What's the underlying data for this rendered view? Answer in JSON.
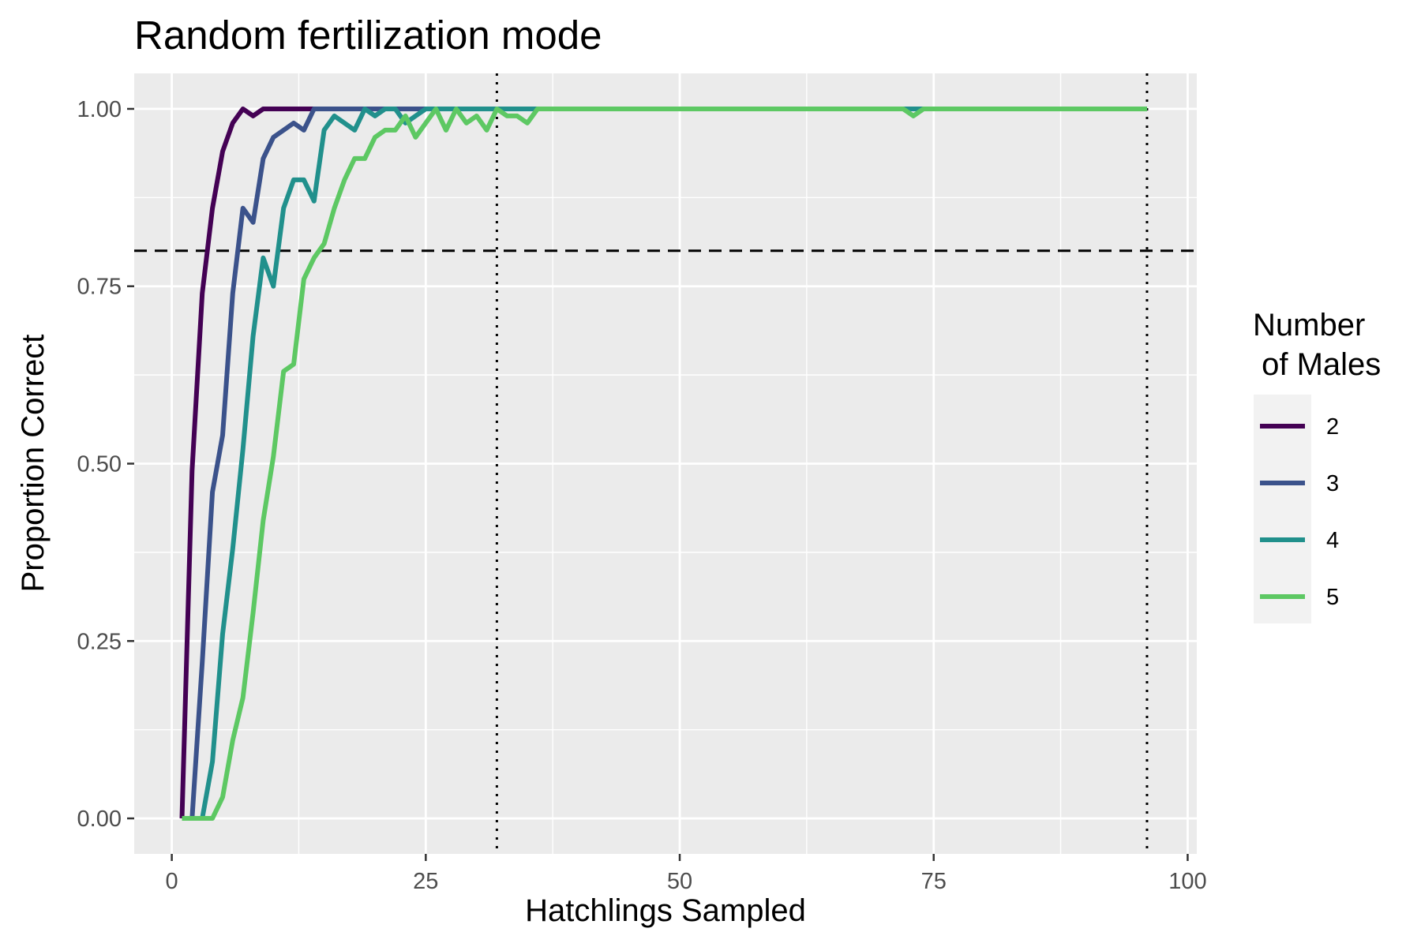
{
  "chart_data": {
    "type": "line",
    "title": "Random fertilization mode",
    "xlabel": "Hatchlings Sampled",
    "ylabel": "Proportion Correct",
    "xlim": [
      -3.7,
      100.9
    ],
    "ylim": [
      -0.05,
      1.05
    ],
    "x_ticks": [
      0,
      25,
      50,
      75,
      100
    ],
    "x_tick_labels": [
      "0",
      "25",
      "50",
      "75",
      "100"
    ],
    "y_ticks": [
      0,
      0.25,
      0.5,
      0.75,
      1
    ],
    "y_tick_labels": [
      "0.00",
      "0.25",
      "0.50",
      "0.75",
      "1.00"
    ],
    "grid": true,
    "legend": {
      "title_lines": [
        "Number",
        " of Males"
      ],
      "position": "right"
    },
    "reference_lines": [
      {
        "orientation": "horizontal",
        "value": 0.8,
        "style": "dashed"
      },
      {
        "orientation": "vertical",
        "value": 32,
        "style": "dotted"
      },
      {
        "orientation": "vertical",
        "value": 96,
        "style": "dotted"
      }
    ],
    "series": [
      {
        "name": "2",
        "color": "#440154",
        "points": [
          [
            1,
            0
          ],
          [
            2,
            0.49
          ],
          [
            3,
            0.74
          ],
          [
            4,
            0.86
          ],
          [
            5,
            0.94
          ],
          [
            6,
            0.98
          ],
          [
            7,
            1
          ],
          [
            8,
            0.99
          ],
          [
            9,
            1
          ],
          [
            10,
            1
          ],
          [
            11,
            1
          ],
          [
            12,
            1
          ],
          [
            13,
            1
          ],
          [
            14,
            1
          ],
          [
            15,
            1
          ],
          [
            16,
            1
          ],
          [
            17,
            1
          ],
          [
            18,
            1
          ],
          [
            19,
            1
          ],
          [
            20,
            1
          ],
          [
            25,
            1
          ],
          [
            30,
            1
          ],
          [
            35,
            1
          ],
          [
            40,
            1
          ],
          [
            50,
            1
          ],
          [
            60,
            1
          ],
          [
            70,
            1
          ],
          [
            80,
            1
          ],
          [
            90,
            1
          ],
          [
            96,
            1
          ]
        ]
      },
      {
        "name": "3",
        "color": "#3b528b",
        "points": [
          [
            2,
            0
          ],
          [
            3,
            0.22
          ],
          [
            4,
            0.46
          ],
          [
            5,
            0.54
          ],
          [
            6,
            0.74
          ],
          [
            7,
            0.86
          ],
          [
            8,
            0.84
          ],
          [
            9,
            0.93
          ],
          [
            10,
            0.96
          ],
          [
            11,
            0.97
          ],
          [
            12,
            0.98
          ],
          [
            13,
            0.97
          ],
          [
            14,
            1
          ],
          [
            15,
            1
          ],
          [
            16,
            1
          ],
          [
            17,
            1
          ],
          [
            18,
            1
          ],
          [
            19,
            1
          ],
          [
            20,
            1
          ],
          [
            25,
            1
          ],
          [
            30,
            1
          ],
          [
            35,
            1
          ],
          [
            40,
            1
          ],
          [
            50,
            1
          ],
          [
            60,
            1
          ],
          [
            70,
            1
          ],
          [
            80,
            1
          ],
          [
            90,
            1
          ],
          [
            96,
            1
          ]
        ]
      },
      {
        "name": "4",
        "color": "#21908c",
        "points": [
          [
            3,
            0
          ],
          [
            4,
            0.08
          ],
          [
            5,
            0.26
          ],
          [
            6,
            0.38
          ],
          [
            7,
            0.52
          ],
          [
            8,
            0.68
          ],
          [
            9,
            0.79
          ],
          [
            10,
            0.75
          ],
          [
            11,
            0.86
          ],
          [
            12,
            0.9
          ],
          [
            13,
            0.9
          ],
          [
            14,
            0.87
          ],
          [
            15,
            0.97
          ],
          [
            16,
            0.99
          ],
          [
            17,
            0.98
          ],
          [
            18,
            0.97
          ],
          [
            19,
            1
          ],
          [
            20,
            0.99
          ],
          [
            21,
            1
          ],
          [
            22,
            1
          ],
          [
            23,
            0.98
          ],
          [
            24,
            0.99
          ],
          [
            25,
            1
          ],
          [
            30,
            1
          ],
          [
            35,
            1
          ],
          [
            40,
            1
          ],
          [
            50,
            1
          ],
          [
            60,
            1
          ],
          [
            70,
            1
          ],
          [
            72,
            1
          ],
          [
            73,
            1
          ],
          [
            74,
            1
          ],
          [
            80,
            1
          ],
          [
            90,
            1
          ],
          [
            96,
            1
          ]
        ]
      },
      {
        "name": "5",
        "color": "#5dc863",
        "points": [
          [
            1,
            0
          ],
          [
            2,
            0
          ],
          [
            3,
            0
          ],
          [
            4,
            0
          ],
          [
            5,
            0.03
          ],
          [
            6,
            0.11
          ],
          [
            7,
            0.17
          ],
          [
            8,
            0.29
          ],
          [
            9,
            0.42
          ],
          [
            10,
            0.51
          ],
          [
            11,
            0.63
          ],
          [
            12,
            0.64
          ],
          [
            13,
            0.76
          ],
          [
            14,
            0.79
          ],
          [
            15,
            0.81
          ],
          [
            16,
            0.86
          ],
          [
            17,
            0.9
          ],
          [
            18,
            0.93
          ],
          [
            19,
            0.93
          ],
          [
            20,
            0.96
          ],
          [
            21,
            0.97
          ],
          [
            22,
            0.97
          ],
          [
            23,
            0.99
          ],
          [
            24,
            0.96
          ],
          [
            25,
            0.98
          ],
          [
            26,
            1
          ],
          [
            27,
            0.97
          ],
          [
            28,
            1
          ],
          [
            29,
            0.98
          ],
          [
            30,
            0.99
          ],
          [
            31,
            0.97
          ],
          [
            32,
            1
          ],
          [
            33,
            0.99
          ],
          [
            34,
            0.99
          ],
          [
            35,
            0.98
          ],
          [
            36,
            1
          ],
          [
            40,
            1
          ],
          [
            50,
            1
          ],
          [
            60,
            1
          ],
          [
            70,
            1
          ],
          [
            72,
            1
          ],
          [
            73,
            0.99
          ],
          [
            74,
            1
          ],
          [
            80,
            1
          ],
          [
            90,
            1
          ],
          [
            96,
            1
          ]
        ]
      }
    ]
  }
}
